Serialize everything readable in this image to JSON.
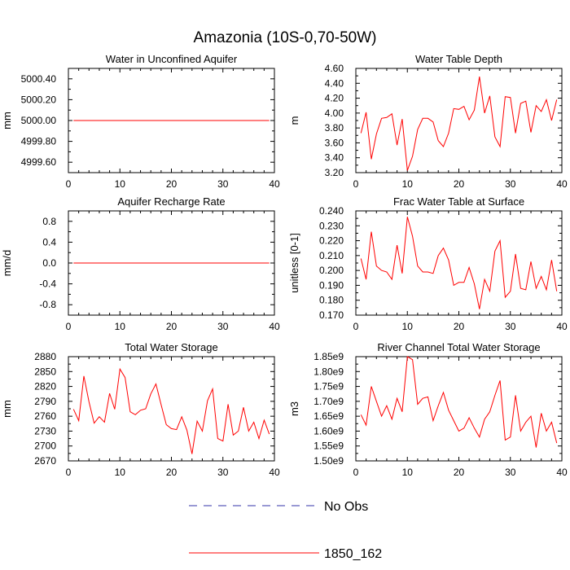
{
  "figure_title": "Amazonia (10S-0,70-50W)",
  "colors": {
    "model_line": "#ff0000",
    "obs_line": "#3333aa",
    "axis": "#000000"
  },
  "legend": [
    {
      "label": "No Obs",
      "style": "dashed",
      "color": "#3333aa"
    },
    {
      "label": "1850_162",
      "style": "solid",
      "color": "#ff0000"
    }
  ],
  "chart_data": [
    {
      "type": "line",
      "title": "Water in Unconfined Aquifer",
      "ylabel": "mm",
      "xlim": [
        0,
        40
      ],
      "ylim": [
        4999.5,
        5000.5
      ],
      "xticks": [
        0,
        10,
        20,
        30,
        40
      ],
      "xtick_labels": [
        "0",
        "10",
        "20",
        "30",
        "40"
      ],
      "yticks": [
        4999.6,
        4999.8,
        5000.0,
        5000.2,
        5000.4
      ],
      "ytick_labels": [
        "4999.60",
        "4999.80",
        "5000.00",
        "5000.20",
        "5000.40"
      ],
      "series": [
        {
          "name": "1850_162",
          "x": [
            1,
            39
          ],
          "values": [
            5000.0,
            5000.0
          ]
        }
      ]
    },
    {
      "type": "line",
      "title": "Water Table Depth",
      "ylabel": "m",
      "xlim": [
        0,
        40
      ],
      "ylim": [
        3.2,
        4.6
      ],
      "xticks": [
        0,
        10,
        20,
        30,
        40
      ],
      "xtick_labels": [
        "0",
        "10",
        "20",
        "30",
        "40"
      ],
      "yticks": [
        3.2,
        3.4,
        3.6,
        3.8,
        4.0,
        4.2,
        4.4,
        4.6
      ],
      "ytick_labels": [
        "3.20",
        "3.40",
        "3.60",
        "3.80",
        "4.00",
        "4.20",
        "4.40",
        "4.60"
      ],
      "series": [
        {
          "name": "1850_162",
          "x": [
            1,
            2,
            3,
            4,
            5,
            6,
            7,
            8,
            9,
            10,
            11,
            12,
            13,
            14,
            15,
            16,
            17,
            18,
            19,
            20,
            21,
            22,
            23,
            24,
            25,
            26,
            27,
            28,
            29,
            30,
            31,
            32,
            33,
            34,
            35,
            36,
            37,
            38,
            39
          ],
          "values": [
            3.73,
            4.01,
            3.38,
            3.72,
            3.93,
            3.94,
            3.99,
            3.57,
            3.92,
            3.23,
            3.42,
            3.78,
            3.93,
            3.93,
            3.88,
            3.63,
            3.55,
            3.73,
            4.06,
            4.05,
            4.09,
            3.91,
            4.04,
            4.49,
            4.0,
            4.23,
            3.68,
            3.55,
            4.22,
            4.21,
            3.73,
            4.13,
            4.16,
            3.74,
            4.1,
            4.02,
            4.18,
            3.9,
            4.18
          ]
        }
      ]
    },
    {
      "type": "line",
      "title": "Aquifer Recharge Rate",
      "ylabel": "mm/d",
      "xlim": [
        0,
        40
      ],
      "ylim": [
        -1.0,
        1.0
      ],
      "xticks": [
        0,
        10,
        20,
        30,
        40
      ],
      "xtick_labels": [
        "0",
        "10",
        "20",
        "30",
        "40"
      ],
      "yticks": [
        -0.8,
        -0.4,
        0.0,
        0.4,
        0.8
      ],
      "ytick_labels": [
        "-0.8",
        "-0.4",
        "0.0",
        "0.4",
        "0.8"
      ],
      "series": [
        {
          "name": "1850_162",
          "x": [
            1,
            39
          ],
          "values": [
            0.0,
            0.0
          ]
        }
      ]
    },
    {
      "type": "line",
      "title": "Frac Water Table at Surface",
      "ylabel": "unitless [0-1]",
      "xlim": [
        0,
        40
      ],
      "ylim": [
        0.17,
        0.24
      ],
      "xticks": [
        0,
        10,
        20,
        30,
        40
      ],
      "xtick_labels": [
        "0",
        "10",
        "20",
        "30",
        "40"
      ],
      "yticks": [
        0.17,
        0.18,
        0.19,
        0.2,
        0.21,
        0.22,
        0.23,
        0.24
      ],
      "ytick_labels": [
        "0.170",
        "0.180",
        "0.190",
        "0.200",
        "0.210",
        "0.220",
        "0.230",
        "0.240"
      ],
      "series": [
        {
          "name": "1850_162",
          "x": [
            1,
            2,
            3,
            4,
            5,
            6,
            7,
            8,
            9,
            10,
            11,
            12,
            13,
            14,
            15,
            16,
            17,
            18,
            19,
            20,
            21,
            22,
            23,
            24,
            25,
            26,
            27,
            28,
            29,
            30,
            31,
            32,
            33,
            34,
            35,
            36,
            37,
            38,
            39
          ],
          "values": [
            0.208,
            0.194,
            0.226,
            0.203,
            0.2,
            0.199,
            0.194,
            0.217,
            0.198,
            0.236,
            0.223,
            0.203,
            0.199,
            0.199,
            0.198,
            0.21,
            0.215,
            0.207,
            0.19,
            0.192,
            0.192,
            0.202,
            0.191,
            0.174,
            0.194,
            0.186,
            0.213,
            0.22,
            0.182,
            0.186,
            0.211,
            0.188,
            0.187,
            0.206,
            0.188,
            0.196,
            0.187,
            0.207,
            0.186
          ]
        }
      ]
    },
    {
      "type": "line",
      "title": "Total Water Storage",
      "ylabel": "mm",
      "xlim": [
        0,
        40
      ],
      "ylim": [
        2670,
        2880
      ],
      "xticks": [
        0,
        10,
        20,
        30,
        40
      ],
      "xtick_labels": [
        "0",
        "10",
        "20",
        "30",
        "40"
      ],
      "yticks": [
        2670,
        2700,
        2730,
        2760,
        2790,
        2820,
        2850,
        2880
      ],
      "ytick_labels": [
        "2670",
        "2700",
        "2730",
        "2760",
        "2790",
        "2820",
        "2850",
        "2880"
      ],
      "series": [
        {
          "name": "1850_162",
          "x": [
            1,
            2,
            3,
            4,
            5,
            6,
            7,
            8,
            9,
            10,
            11,
            12,
            13,
            14,
            15,
            16,
            17,
            18,
            19,
            20,
            21,
            22,
            23,
            24,
            25,
            26,
            27,
            28,
            29,
            30,
            31,
            32,
            33,
            34,
            35,
            36,
            37,
            38,
            39
          ],
          "values": [
            2774,
            2751,
            2841,
            2789,
            2746,
            2759,
            2748,
            2806,
            2774,
            2855,
            2838,
            2769,
            2763,
            2772,
            2775,
            2805,
            2825,
            2783,
            2743,
            2735,
            2733,
            2759,
            2732,
            2684,
            2750,
            2730,
            2791,
            2815,
            2715,
            2710,
            2784,
            2722,
            2730,
            2778,
            2730,
            2748,
            2715,
            2752,
            2724
          ]
        }
      ]
    },
    {
      "type": "line",
      "title": "River Channel Total Water Storage",
      "ylabel": "m3",
      "xlim": [
        0,
        40
      ],
      "ylim": [
        1.5,
        1.85
      ],
      "y_unit_suffix": "e9",
      "xticks": [
        0,
        10,
        20,
        30,
        40
      ],
      "xtick_labels": [
        "0",
        "10",
        "20",
        "30",
        "40"
      ],
      "yticks": [
        1.5,
        1.55,
        1.6,
        1.65,
        1.7,
        1.75,
        1.8,
        1.85
      ],
      "ytick_labels": [
        "1.50e9",
        "1.55e9",
        "1.60e9",
        "1.65e9",
        "1.70e9",
        "1.75e9",
        "1.80e9",
        "1.85e9"
      ],
      "series": [
        {
          "name": "1850_162",
          "x": [
            1,
            2,
            3,
            4,
            5,
            6,
            7,
            8,
            9,
            10,
            11,
            12,
            13,
            14,
            15,
            16,
            17,
            18,
            19,
            20,
            21,
            22,
            23,
            24,
            25,
            26,
            27,
            28,
            29,
            30,
            31,
            32,
            33,
            34,
            35,
            36,
            37,
            38,
            39
          ],
          "values": [
            1.655,
            1.62,
            1.75,
            1.7,
            1.65,
            1.685,
            1.64,
            1.71,
            1.665,
            1.85,
            1.84,
            1.69,
            1.71,
            1.715,
            1.635,
            1.685,
            1.73,
            1.67,
            1.635,
            1.6,
            1.61,
            1.645,
            1.61,
            1.58,
            1.64,
            1.665,
            1.72,
            1.77,
            1.57,
            1.58,
            1.72,
            1.6,
            1.63,
            1.65,
            1.545,
            1.66,
            1.6,
            1.63,
            1.56
          ]
        }
      ]
    }
  ]
}
